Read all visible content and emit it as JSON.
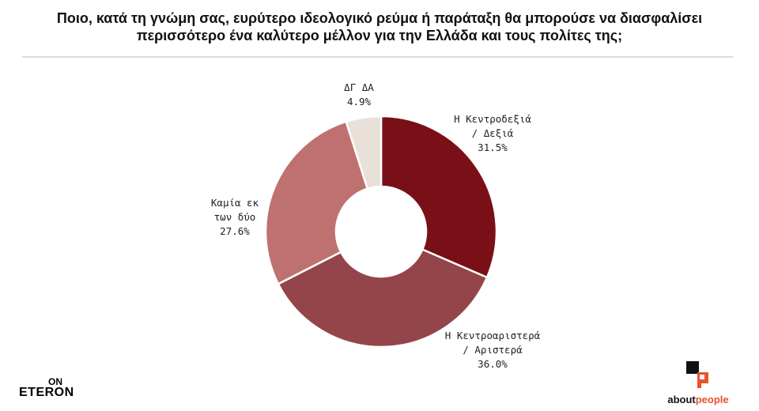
{
  "title": {
    "line1": "Ποιο, κατά τη γνώμη σας, ευρύτερο ιδεολογικό ρεύμα ή παράταξη θα μπορούσε να διασφαλίσει",
    "line2": "περισσότερο ένα καλύτερο μέλλον για την Ελλάδα και τους πολίτες της;"
  },
  "chart_data": {
    "type": "pie",
    "donut": true,
    "slices": [
      {
        "label_lines": [
          "Η Κεντροδεξιά",
          "/ Δεξιά"
        ],
        "value": 31.5,
        "value_label": "31.5%",
        "color": "#7a1017"
      },
      {
        "label_lines": [
          "Η Κεντροαριστερά",
          "/ Αριστερά"
        ],
        "value": 36.0,
        "value_label": "36.0%",
        "color": "#93454a"
      },
      {
        "label_lines": [
          "Καμία εκ",
          "των δύο"
        ],
        "value": 27.6,
        "value_label": "27.6%",
        "color": "#bf7170"
      },
      {
        "label_lines": [
          "ΔΓ ΔΑ"
        ],
        "value": 4.9,
        "value_label": "4.9%",
        "color": "#e8e0d9"
      }
    ]
  },
  "logos": {
    "left_top": "ON",
    "left_bottom": "ETERON",
    "right_main": "about",
    "right_accent": "people"
  }
}
